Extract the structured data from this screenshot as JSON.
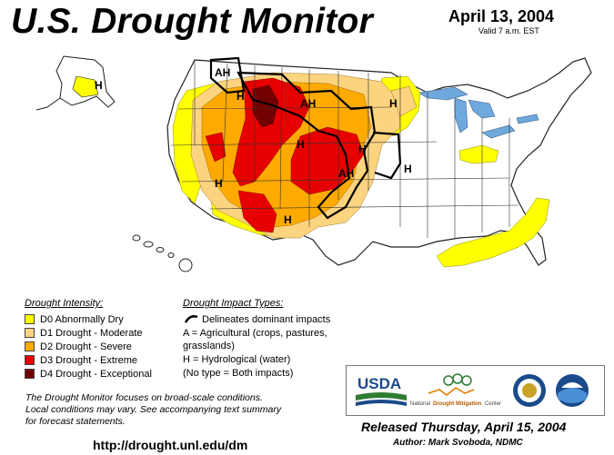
{
  "title": "U.S. Drought Monitor",
  "date": "April 13, 2004",
  "valid": "Valid 7 a.m. EST",
  "map_labels": {
    "h": "H",
    "ah": "AH"
  },
  "legend": {
    "intensity_heading": "Drought Intensity:",
    "intensity_items": [
      {
        "label": "D0 Abnormally Dry",
        "color": "#ffff00"
      },
      {
        "label": "D1 Drought - Moderate",
        "color": "#fcd37f"
      },
      {
        "label": "D2 Drought - Severe",
        "color": "#ffaa00"
      },
      {
        "label": "D3 Drought - Extreme",
        "color": "#e60000"
      },
      {
        "label": "D4 Drought - Exceptional",
        "color": "#730000"
      }
    ],
    "impact_heading": "Drought Impact Types:",
    "impact_lines": [
      "Delineates dominant impacts",
      "A = Agricultural (crops, pastures,",
      "grasslands)",
      "H = Hydrological (water)",
      "(No type = Both impacts)"
    ]
  },
  "note": [
    "The Drought Monitor focuses on broad-scale conditions.",
    "Local conditions may vary.  See accompanying text summary",
    "for forecast statements."
  ],
  "url": "http://drought.unl.edu/dm",
  "logos": {
    "usda": "USDA",
    "ndmc_1": "National",
    "ndmc_2": "Drought Mitigation",
    "ndmc_3": "Center"
  },
  "released": "Released Thursday, April 15, 2004",
  "author": "Author: Mark Svoboda, NDMC"
}
